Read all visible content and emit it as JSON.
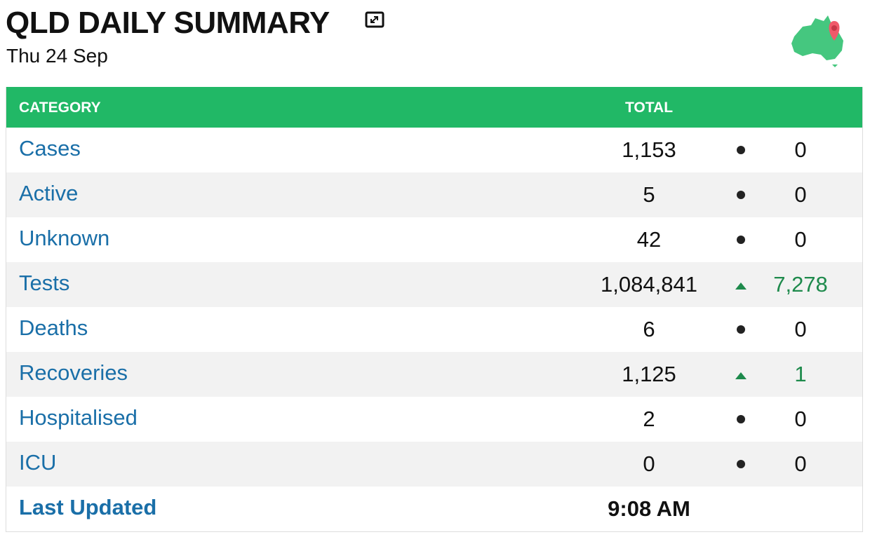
{
  "header": {
    "title": "QLD DAILY SUMMARY",
    "date": "Thu 24 Sep"
  },
  "table": {
    "columns": [
      "CATEGORY",
      "TOTAL"
    ],
    "rows": [
      {
        "label": "Cases",
        "total": "1,153",
        "change": "0",
        "trend": "flat"
      },
      {
        "label": "Active",
        "total": "5",
        "change": "0",
        "trend": "flat"
      },
      {
        "label": "Unknown",
        "total": "42",
        "change": "0",
        "trend": "flat"
      },
      {
        "label": "Tests",
        "total": "1,084,841",
        "change": "7,278",
        "trend": "up"
      },
      {
        "label": "Deaths",
        "total": "6",
        "change": "0",
        "trend": "flat"
      },
      {
        "label": "Recoveries",
        "total": "1,125",
        "change": "1",
        "trend": "up"
      },
      {
        "label": "Hospitalised",
        "total": "2",
        "change": "0",
        "trend": "flat"
      },
      {
        "label": "ICU",
        "total": "0",
        "change": "0",
        "trend": "flat"
      }
    ],
    "footer": {
      "label": "Last Updated",
      "value": "9:08 AM"
    }
  }
}
